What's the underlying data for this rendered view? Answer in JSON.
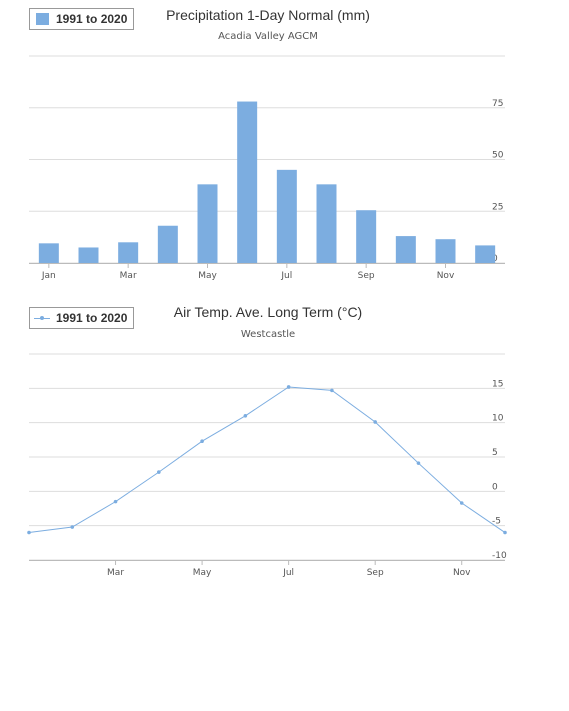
{
  "colors": {
    "series": "#7cade0",
    "line": "#7cade0",
    "grid": "#dddddd",
    "axis": "#bbbbbb"
  },
  "chart_data": [
    {
      "type": "bar",
      "title": "Precipitation 1-Day Normal (mm)",
      "subtitle": "Acadia Valley AGCM",
      "categories": [
        "Jan",
        "Feb",
        "Mar",
        "Apr",
        "May",
        "Jun",
        "Jul",
        "Aug",
        "Sep",
        "Oct",
        "Nov",
        "Dec"
      ],
      "xtick_labels": [
        "Jan",
        "Mar",
        "May",
        "Jul",
        "Sep",
        "Nov"
      ],
      "series": [
        {
          "name": "1991 to 2020",
          "values": [
            9.5,
            7.5,
            10,
            18,
            38,
            78,
            45,
            38,
            25.5,
            13,
            11.5,
            8.5
          ]
        }
      ],
      "ylim": [
        0,
        100
      ],
      "yticks": [
        0,
        25,
        50,
        75
      ],
      "y_axis_side": "right",
      "grid": true,
      "legend": "top-left"
    },
    {
      "type": "line",
      "title": "Air Temp. Ave. Long Term (°C)",
      "subtitle": "Westcastle",
      "categories": [
        "Jan",
        "Feb",
        "Mar",
        "Apr",
        "May",
        "Jun",
        "Jul",
        "Aug",
        "Sep",
        "Oct",
        "Nov",
        "Dec"
      ],
      "xtick_labels": [
        "Mar",
        "May",
        "Jul",
        "Sep",
        "Nov"
      ],
      "series": [
        {
          "name": "1991 to 2020",
          "values": [
            -6,
            -5.2,
            -1.5,
            2.8,
            7.3,
            11,
            15.2,
            14.7,
            10.1,
            4.1,
            -1.7,
            -6
          ]
        }
      ],
      "ylim": [
        -10,
        20
      ],
      "yticks": [
        -10,
        -5,
        0,
        5,
        10,
        15
      ],
      "y_axis_side": "right",
      "grid": true,
      "legend": "top-left"
    }
  ]
}
